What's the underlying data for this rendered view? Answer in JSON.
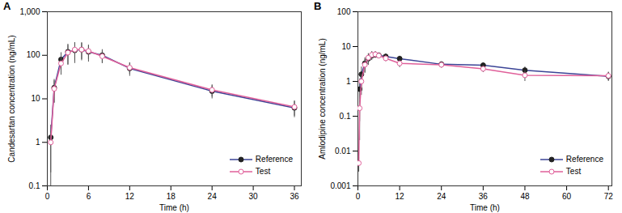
{
  "chart_data": [
    {
      "type": "line",
      "title": "A",
      "x_label": "Time (h)",
      "y_label": "Candesartan concentration (ng/mL)",
      "log": "y",
      "legend": "lower right",
      "x": [
        0.5,
        1,
        2,
        3,
        4,
        5,
        6,
        8,
        12,
        24,
        36
      ],
      "xlim": [
        0,
        37
      ],
      "xticks": [
        0,
        6,
        12,
        18,
        24,
        30,
        36
      ],
      "ylim": [
        0.1,
        1000
      ],
      "yticks": [
        {
          "value": 0.1,
          "label": "0.1"
        },
        1,
        10,
        100,
        {
          "value": 1000,
          "label": "1,000"
        }
      ],
      "series": [
        {
          "name": "Reference",
          "color": "#3b4496",
          "marker": "filled_circle",
          "values": [
            1.3,
            18,
            80,
            120,
            130,
            135,
            120,
            100,
            50,
            15,
            6.2
          ],
          "sd": [
            1.2,
            10,
            35,
            60,
            65,
            60,
            50,
            35,
            17,
            5,
            2.5
          ]
        },
        {
          "name": "Test",
          "color": "#e0609a",
          "marker": "open_circle",
          "values": [
            1.0,
            17,
            65,
            115,
            135,
            135,
            125,
            95,
            52,
            16,
            6.5
          ],
          "sd": [
            0.8,
            9,
            30,
            55,
            60,
            55,
            45,
            30,
            15,
            5,
            2.5
          ]
        }
      ]
    },
    {
      "type": "line",
      "title": "B",
      "x_label": "Time (h)",
      "y_label": "Amlodipine concentration (ng/mL)",
      "log": "y",
      "legend": "lower right",
      "x": [
        0.25,
        0.5,
        1,
        2,
        3,
        4,
        5,
        6,
        8,
        12,
        24,
        36,
        48,
        72
      ],
      "xlim": [
        0,
        73
      ],
      "xticks": [
        0,
        12,
        24,
        36,
        48,
        60,
        72
      ],
      "ylim": [
        0.001,
        100
      ],
      "yticks": [
        {
          "value": 0.001,
          "label": "0.001"
        },
        {
          "value": 0.01,
          "label": "0.01"
        },
        {
          "value": 0.1,
          "label": "0.1"
        },
        1,
        10,
        100
      ],
      "series": [
        {
          "name": "Reference",
          "color": "#3b4496",
          "marker": "filled_circle",
          "values": [
            null,
            0.6,
            1.6,
            3.3,
            4.5,
            5.5,
            5.8,
            5.6,
            5.2,
            4.5,
            3.1,
            2.9,
            2.1,
            1.4
          ],
          "sd": [
            null,
            0.58,
            1.0,
            1.5,
            1.6,
            1.5,
            1.2,
            1.0,
            0.9,
            0.8,
            0.6,
            0.5,
            0.5,
            0.4
          ]
        },
        {
          "name": "Test",
          "color": "#e0609a",
          "marker": "open_circle",
          "values": [
            0.0045,
            0.17,
            1.0,
            3.0,
            4.8,
            5.8,
            6.0,
            5.5,
            4.6,
            3.3,
            3.0,
            2.3,
            1.5,
            1.45
          ],
          "sd": [
            0.002,
            0.1,
            0.6,
            1.3,
            1.5,
            1.4,
            1.2,
            1.0,
            0.9,
            0.8,
            0.6,
            0.5,
            0.5,
            0.4
          ]
        }
      ]
    }
  ]
}
